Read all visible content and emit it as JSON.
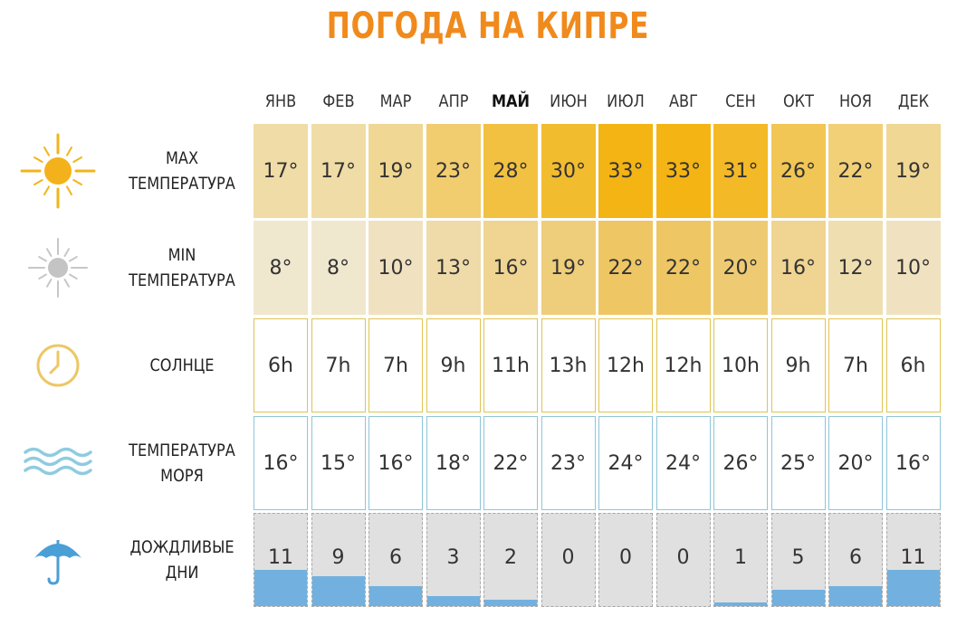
{
  "title": "ПОГОДА НА КИПРЕ",
  "colors": {
    "title": "#f08a1c",
    "max_temp_scale": [
      "#f0dca6",
      "#f3b414"
    ],
    "min_temp_scale": [
      "#f0e7cf",
      "#eec664"
    ],
    "sun_border": "#e0c451",
    "sea_border": "#8ec5d8",
    "rain_fill": "#72b1df",
    "rain_background": "#e0e0e0"
  },
  "chart_data": {
    "type": "table",
    "months": [
      "ЯНВ",
      "ФЕВ",
      "МАР",
      "АПР",
      "МАЙ",
      "ИЮН",
      "ИЮЛ",
      "АВГ",
      "СЕН",
      "ОКТ",
      "НОЯ",
      "ДЕК"
    ],
    "current_month_index": 4,
    "rows": [
      {
        "id": "max",
        "icon": "sun-icon",
        "label": [
          "MAX",
          "ТЕМПЕРАТУРА"
        ],
        "unit": "°",
        "values": [
          17,
          17,
          19,
          23,
          28,
          30,
          33,
          33,
          31,
          26,
          22,
          19
        ]
      },
      {
        "id": "min",
        "icon": "grey-sun-icon",
        "label": [
          "MIN",
          "ТЕМПЕРАТУРА"
        ],
        "unit": "°",
        "values": [
          8,
          8,
          10,
          13,
          16,
          19,
          22,
          22,
          20,
          16,
          12,
          10
        ]
      },
      {
        "id": "sun",
        "icon": "clock-icon",
        "label": [
          "СОЛНЦЕ"
        ],
        "unit": "h",
        "values": [
          6,
          7,
          7,
          9,
          11,
          13,
          12,
          12,
          10,
          9,
          7,
          6
        ]
      },
      {
        "id": "sea",
        "icon": "waves-icon",
        "label": [
          "ТЕМПЕРАТУРА",
          "МОРЯ"
        ],
        "unit": "°",
        "values": [
          16,
          15,
          16,
          18,
          22,
          23,
          24,
          24,
          26,
          25,
          20,
          16
        ]
      },
      {
        "id": "rain",
        "icon": "umbrella-icon",
        "label": [
          "ДОЖДЛИВЫЕ",
          "ДНИ"
        ],
        "unit": "",
        "values": [
          11,
          9,
          6,
          3,
          2,
          0,
          0,
          0,
          1,
          5,
          6,
          11
        ]
      }
    ]
  }
}
